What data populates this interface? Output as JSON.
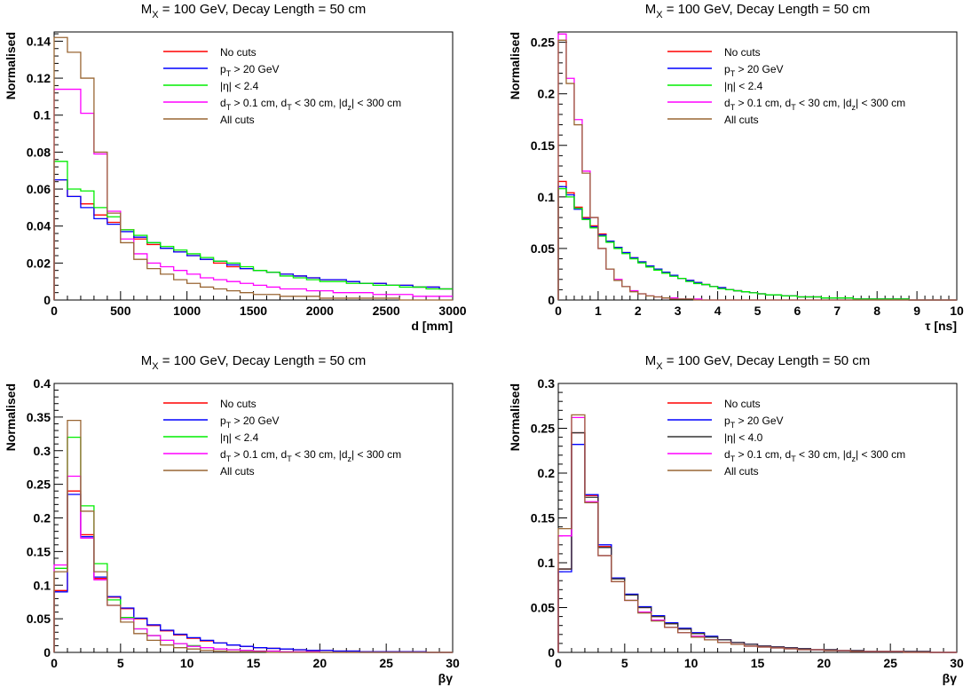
{
  "chart_data": [
    {
      "type": "line",
      "title_main": "M",
      "title_sub": "X",
      "title_rest": " = 100 GeV, Decay Length = 50 cm",
      "xlabel": "d [mm]",
      "ylabel": "Normalised",
      "xlim": [
        0,
        3000
      ],
      "ylim": [
        0,
        0.145
      ],
      "xticks": [
        0,
        500,
        1000,
        1500,
        2000,
        2500,
        3000
      ],
      "xtick_labels": [
        "0",
        "500",
        "1000",
        "1500",
        "2000",
        "2500",
        "3000"
      ],
      "yticks": [
        0,
        0.02,
        0.04,
        0.06,
        0.08,
        0.1,
        0.12,
        0.14
      ],
      "ytick_labels": [
        "0",
        "0.02",
        "0.04",
        "0.06",
        "0.08",
        "0.1",
        "0.12",
        "0.14"
      ],
      "bin_edges_start": 0,
      "bin_width": 100,
      "legend_position": "top-right",
      "series": [
        {
          "name": "No cuts",
          "color": "#ff0000",
          "values": [
            0.065,
            0.056,
            0.052,
            0.046,
            0.042,
            0.038,
            0.033,
            0.03,
            0.028,
            0.026,
            0.024,
            0.022,
            0.02,
            0.018,
            0.017,
            0.016,
            0.015,
            0.014,
            0.013,
            0.012,
            0.011,
            0.011,
            0.01,
            0.009,
            0.009,
            0.008,
            0.008,
            0.007,
            0.007,
            0.006
          ]
        },
        {
          "name": "p_T > 20 GeV",
          "color": "#0000ff",
          "values": [
            0.065,
            0.056,
            0.05,
            0.044,
            0.041,
            0.037,
            0.034,
            0.031,
            0.028,
            0.026,
            0.024,
            0.022,
            0.021,
            0.019,
            0.017,
            0.016,
            0.015,
            0.014,
            0.013,
            0.012,
            0.011,
            0.011,
            0.01,
            0.009,
            0.009,
            0.008,
            0.008,
            0.007,
            0.007,
            0.006
          ]
        },
        {
          "name": "|η| < 2.4",
          "color": "#00ee00",
          "values": [
            0.075,
            0.06,
            0.059,
            0.05,
            0.045,
            0.038,
            0.035,
            0.031,
            0.029,
            0.027,
            0.025,
            0.023,
            0.021,
            0.02,
            0.018,
            0.016,
            0.015,
            0.013,
            0.012,
            0.011,
            0.01,
            0.01,
            0.009,
            0.009,
            0.008,
            0.008,
            0.007,
            0.007,
            0.006,
            0.006
          ]
        },
        {
          "name": "d_T > 0.1 cm, d_T < 30 cm, |d_z| < 300 cm",
          "color": "#ff00ff",
          "values": [
            0.114,
            0.114,
            0.101,
            0.079,
            0.048,
            0.033,
            0.025,
            0.02,
            0.018,
            0.016,
            0.014,
            0.012,
            0.011,
            0.01,
            0.009,
            0.008,
            0.007,
            0.006,
            0.006,
            0.005,
            0.005,
            0.004,
            0.004,
            0.004,
            0.003,
            0.003,
            0.003,
            0.002,
            0.002,
            0.002
          ]
        },
        {
          "name": "All cuts",
          "color": "#996633",
          "values": [
            0.142,
            0.134,
            0.12,
            0.08,
            0.047,
            0.031,
            0.022,
            0.017,
            0.014,
            0.011,
            0.009,
            0.007,
            0.006,
            0.005,
            0.004,
            0.003,
            0.003,
            0.002,
            0.002,
            0.002,
            0.001,
            0.001,
            0.001,
            0.001,
            0.001,
            0.001,
            0.0,
            0.0,
            0.0,
            0.0
          ]
        }
      ]
    },
    {
      "type": "line",
      "title_main": "M",
      "title_sub": "X",
      "title_rest": " = 100 GeV, Decay Length = 50 cm",
      "xlabel": "τ [ns]",
      "ylabel": "Normalised",
      "xlim": [
        0,
        10
      ],
      "ylim": [
        0,
        0.26
      ],
      "xticks": [
        0,
        1,
        2,
        3,
        4,
        5,
        6,
        7,
        8,
        9,
        10
      ],
      "xtick_labels": [
        "0",
        "1",
        "2",
        "3",
        "4",
        "5",
        "6",
        "7",
        "8",
        "9",
        "10"
      ],
      "yticks": [
        0,
        0.05,
        0.1,
        0.15,
        0.2,
        0.25
      ],
      "ytick_labels": [
        "0",
        "0.05",
        "0.1",
        "0.15",
        "0.2",
        "0.25"
      ],
      "bin_edges_start": 0,
      "bin_width": 0.2,
      "legend_position": "top-right",
      "series": [
        {
          "name": "No cuts",
          "color": "#ff0000",
          "values": [
            0.115,
            0.104,
            0.09,
            0.08,
            0.072,
            0.064,
            0.057,
            0.051,
            0.046,
            0.041,
            0.037,
            0.033,
            0.03,
            0.027,
            0.024,
            0.021,
            0.019,
            0.017,
            0.015,
            0.013,
            0.012,
            0.01,
            0.009,
            0.008,
            0.007,
            0.006,
            0.005,
            0.005,
            0.004,
            0.004,
            0.003,
            0.003,
            0.003,
            0.002,
            0.002,
            0.002,
            0.002,
            0.001,
            0.001,
            0.001,
            0.001,
            0.001,
            0.001,
            0.001,
            0.0,
            0.0,
            0.0,
            0.0,
            0.0,
            0.0
          ]
        },
        {
          "name": "p_T > 20 GeV",
          "color": "#0000ff",
          "values": [
            0.11,
            0.102,
            0.088,
            0.079,
            0.071,
            0.063,
            0.057,
            0.051,
            0.046,
            0.041,
            0.037,
            0.033,
            0.03,
            0.027,
            0.024,
            0.021,
            0.019,
            0.017,
            0.015,
            0.013,
            0.012,
            0.01,
            0.009,
            0.008,
            0.007,
            0.006,
            0.005,
            0.005,
            0.004,
            0.004,
            0.003,
            0.003,
            0.003,
            0.002,
            0.002,
            0.002,
            0.002,
            0.001,
            0.001,
            0.001,
            0.001,
            0.001,
            0.001,
            0.001,
            0.0,
            0.0,
            0.0,
            0.0,
            0.0,
            0.0
          ]
        },
        {
          "name": "|η| < 2.4",
          "color": "#00ee00",
          "values": [
            0.108,
            0.1,
            0.089,
            0.078,
            0.07,
            0.062,
            0.056,
            0.05,
            0.045,
            0.04,
            0.036,
            0.032,
            0.029,
            0.026,
            0.023,
            0.021,
            0.018,
            0.016,
            0.015,
            0.013,
            0.011,
            0.01,
            0.009,
            0.008,
            0.007,
            0.006,
            0.005,
            0.005,
            0.004,
            0.004,
            0.003,
            0.003,
            0.003,
            0.002,
            0.002,
            0.002,
            0.002,
            0.001,
            0.001,
            0.001,
            0.001,
            0.001,
            0.001,
            0.001,
            0.0,
            0.0,
            0.0,
            0.0,
            0.0,
            0.0
          ]
        },
        {
          "name": "d_T > 0.1 cm, d_T < 30 cm, |d_z| < 300 cm",
          "color": "#ff00ff",
          "values": [
            0.258,
            0.215,
            0.175,
            0.125,
            0.08,
            0.05,
            0.03,
            0.02,
            0.013,
            0.009,
            0.006,
            0.004,
            0.003,
            0.002,
            0.002,
            0.001,
            0.001,
            0.001,
            0.0,
            0.0,
            0.0,
            0.0,
            0.0,
            0.0,
            0.0,
            0.0,
            0.0,
            0.0,
            0.0,
            0.0,
            0.0,
            0.0,
            0.0,
            0.0,
            0.0,
            0.0,
            0.0,
            0.0,
            0.0,
            0.0,
            0.0,
            0.0,
            0.0,
            0.0,
            0.0,
            0.0,
            0.0,
            0.0,
            0.0,
            0.0
          ]
        },
        {
          "name": "All cuts",
          "color": "#996633",
          "values": [
            0.252,
            0.21,
            0.17,
            0.123,
            0.08,
            0.05,
            0.03,
            0.019,
            0.013,
            0.008,
            0.006,
            0.004,
            0.003,
            0.002,
            0.001,
            0.001,
            0.001,
            0.0,
            0.0,
            0.0,
            0.0,
            0.0,
            0.0,
            0.0,
            0.0,
            0.0,
            0.0,
            0.0,
            0.0,
            0.0,
            0.0,
            0.0,
            0.0,
            0.0,
            0.0,
            0.0,
            0.0,
            0.0,
            0.0,
            0.0,
            0.0,
            0.0,
            0.0,
            0.0,
            0.0,
            0.0,
            0.0,
            0.0,
            0.0,
            0.0
          ]
        }
      ]
    },
    {
      "type": "line",
      "title_main": "M",
      "title_sub": "X",
      "title_rest": " = 100 GeV, Decay Length = 50 cm",
      "xlabel": "βγ",
      "ylabel": "Normalised",
      "xlim": [
        0,
        30
      ],
      "ylim": [
        0,
        0.4
      ],
      "xticks": [
        0,
        5,
        10,
        15,
        20,
        25,
        30
      ],
      "xtick_labels": [
        "0",
        "5",
        "10",
        "15",
        "20",
        "25",
        "30"
      ],
      "yticks": [
        0,
        0.05,
        0.1,
        0.15,
        0.2,
        0.25,
        0.3,
        0.35,
        0.4
      ],
      "ytick_labels": [
        "0",
        "0.05",
        "0.1",
        "0.15",
        "0.2",
        "0.25",
        "0.3",
        "0.35",
        "0.4"
      ],
      "bin_edges_start": 0,
      "bin_width": 1,
      "legend_position": "top-right",
      "series": [
        {
          "name": "No cuts",
          "color": "#ff0000",
          "values": [
            0.092,
            0.24,
            0.175,
            0.11,
            0.082,
            0.065,
            0.05,
            0.04,
            0.032,
            0.026,
            0.021,
            0.017,
            0.014,
            0.011,
            0.009,
            0.007,
            0.006,
            0.005,
            0.004,
            0.003,
            0.003,
            0.002,
            0.002,
            0.001,
            0.001,
            0.001,
            0.001,
            0.001,
            0.0,
            0.0
          ]
        },
        {
          "name": "p_T > 20 GeV",
          "color": "#0000ff",
          "values": [
            0.09,
            0.235,
            0.172,
            0.112,
            0.083,
            0.066,
            0.051,
            0.041,
            0.033,
            0.027,
            0.022,
            0.018,
            0.014,
            0.011,
            0.009,
            0.007,
            0.006,
            0.005,
            0.004,
            0.003,
            0.003,
            0.002,
            0.002,
            0.001,
            0.001,
            0.001,
            0.001,
            0.001,
            0.0,
            0.0
          ]
        },
        {
          "name": "|η| < 2.4",
          "color": "#00ee00",
          "values": [
            0.125,
            0.32,
            0.218,
            0.132,
            0.078,
            0.052,
            0.035,
            0.025,
            0.018,
            0.013,
            0.01,
            0.007,
            0.005,
            0.004,
            0.003,
            0.002,
            0.002,
            0.001,
            0.001,
            0.001,
            0.0,
            0.0,
            0.0,
            0.0,
            0.0,
            0.0,
            0.0,
            0.0,
            0.0,
            0.0
          ]
        },
        {
          "name": "d_T > 0.1 cm, d_T < 30 cm, |d_z| < 300 cm",
          "color": "#ff00ff",
          "values": [
            0.13,
            0.262,
            0.17,
            0.108,
            0.07,
            0.05,
            0.035,
            0.025,
            0.018,
            0.013,
            0.009,
            0.007,
            0.005,
            0.004,
            0.003,
            0.002,
            0.002,
            0.001,
            0.001,
            0.001,
            0.0,
            0.0,
            0.0,
            0.0,
            0.0,
            0.0,
            0.0,
            0.0,
            0.0,
            0.0
          ]
        },
        {
          "name": "All cuts",
          "color": "#996633",
          "values": [
            0.12,
            0.345,
            0.21,
            0.12,
            0.07,
            0.045,
            0.028,
            0.018,
            0.011,
            0.007,
            0.005,
            0.003,
            0.002,
            0.001,
            0.001,
            0.001,
            0.0,
            0.0,
            0.0,
            0.0,
            0.0,
            0.0,
            0.0,
            0.0,
            0.0,
            0.0,
            0.0,
            0.0,
            0.0,
            0.0
          ]
        }
      ]
    },
    {
      "type": "line",
      "title_main": "M",
      "title_sub": "X",
      "title_rest": " = 100 GeV, Decay Length = 50 cm",
      "xlabel": "βγ",
      "ylabel": "Normalised",
      "xlim": [
        0,
        30
      ],
      "ylim": [
        0,
        0.3
      ],
      "xticks": [
        0,
        5,
        10,
        15,
        20,
        25,
        30
      ],
      "xtick_labels": [
        "0",
        "5",
        "10",
        "15",
        "20",
        "25",
        "30"
      ],
      "yticks": [
        0,
        0.05,
        0.1,
        0.15,
        0.2,
        0.25,
        0.3
      ],
      "ytick_labels": [
        "0",
        "0.05",
        "0.1",
        "0.15",
        "0.2",
        "0.25",
        "0.3"
      ],
      "bin_edges_start": 0,
      "bin_width": 1,
      "legend_position": "top-right",
      "series": [
        {
          "name": "No cuts",
          "color": "#ff0000",
          "values": [
            0.093,
            0.245,
            0.175,
            0.118,
            0.083,
            0.064,
            0.05,
            0.04,
            0.032,
            0.026,
            0.021,
            0.017,
            0.014,
            0.011,
            0.009,
            0.007,
            0.006,
            0.005,
            0.004,
            0.003,
            0.003,
            0.002,
            0.002,
            0.001,
            0.001,
            0.001,
            0.001,
            0.001,
            0.0,
            0.0
          ]
        },
        {
          "name": "p_T > 20 GeV",
          "color": "#0000ff",
          "values": [
            0.09,
            0.232,
            0.176,
            0.12,
            0.083,
            0.065,
            0.051,
            0.041,
            0.033,
            0.027,
            0.022,
            0.018,
            0.014,
            0.011,
            0.009,
            0.007,
            0.006,
            0.005,
            0.004,
            0.003,
            0.003,
            0.002,
            0.002,
            0.001,
            0.001,
            0.001,
            0.001,
            0.001,
            0.0,
            0.0
          ]
        },
        {
          "name": "|η| < 4.0",
          "color": "#333333",
          "values": [
            0.093,
            0.245,
            0.173,
            0.117,
            0.082,
            0.064,
            0.05,
            0.04,
            0.032,
            0.026,
            0.021,
            0.017,
            0.014,
            0.011,
            0.009,
            0.007,
            0.006,
            0.005,
            0.004,
            0.003,
            0.003,
            0.002,
            0.002,
            0.001,
            0.001,
            0.001,
            0.001,
            0.001,
            0.0,
            0.0
          ]
        },
        {
          "name": "d_T > 0.1 cm, d_T < 30 cm, |d_z| < 300 cm",
          "color": "#ff00ff",
          "values": [
            0.13,
            0.262,
            0.168,
            0.108,
            0.079,
            0.058,
            0.045,
            0.036,
            0.028,
            0.022,
            0.018,
            0.014,
            0.011,
            0.009,
            0.007,
            0.006,
            0.005,
            0.004,
            0.003,
            0.003,
            0.002,
            0.002,
            0.001,
            0.001,
            0.001,
            0.001,
            0.0,
            0.0,
            0.0,
            0.0
          ]
        },
        {
          "name": "All cuts",
          "color": "#996633",
          "values": [
            0.138,
            0.265,
            0.167,
            0.108,
            0.079,
            0.058,
            0.044,
            0.035,
            0.028,
            0.022,
            0.017,
            0.014,
            0.011,
            0.009,
            0.007,
            0.006,
            0.005,
            0.004,
            0.003,
            0.003,
            0.002,
            0.002,
            0.001,
            0.001,
            0.001,
            0.001,
            0.0,
            0.0,
            0.0,
            0.0
          ]
        }
      ]
    }
  ]
}
